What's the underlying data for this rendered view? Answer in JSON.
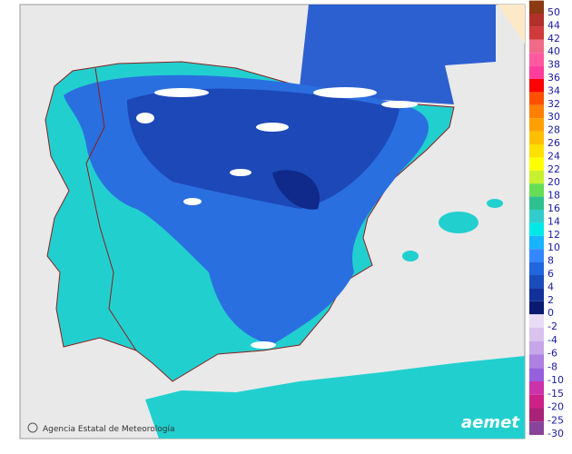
{
  "credit": "Agencia Estatal de Meteorología",
  "logo": "aemet",
  "legend": {
    "upper": [
      {
        "label": "50",
        "color": "#8c3a14"
      },
      {
        "label": "44",
        "color": "#b2302a"
      },
      {
        "label": "42",
        "color": "#d03a3a"
      },
      {
        "label": "40",
        "color": "#f06a8a"
      },
      {
        "label": "38",
        "color": "#ff5aa0"
      },
      {
        "label": "36",
        "color": "#ff3d9a"
      },
      {
        "label": "34",
        "color": "#ff0000"
      },
      {
        "label": "32",
        "color": "#ff5000"
      },
      {
        "label": "30",
        "color": "#ff8000"
      },
      {
        "label": "28",
        "color": "#ffa000"
      },
      {
        "label": "26",
        "color": "#ffc000"
      },
      {
        "label": "24",
        "color": "#ffe000"
      },
      {
        "label": "22",
        "color": "#ffff00"
      },
      {
        "label": "20",
        "color": "#c8f030"
      },
      {
        "label": "18",
        "color": "#66dd55"
      },
      {
        "label": "16",
        "color": "#30c090"
      },
      {
        "label": "14",
        "color": "#33cccc"
      },
      {
        "label": "12",
        "color": "#00e8e8"
      },
      {
        "label": "10",
        "color": "#18b4ff"
      },
      {
        "label": "8",
        "color": "#3388ff"
      },
      {
        "label": "6",
        "color": "#2266dd"
      },
      {
        "label": "4",
        "color": "#1a4cbb"
      },
      {
        "label": "2",
        "color": "#12309a"
      },
      {
        "label": "0",
        "color": "#0a1a70"
      }
    ],
    "lower": [
      {
        "label": "-2",
        "color": "#e8dcf4"
      },
      {
        "label": "-4",
        "color": "#d8c2ee"
      },
      {
        "label": "-6",
        "color": "#c6a6e8"
      },
      {
        "label": "-8",
        "color": "#ae80e0"
      },
      {
        "label": "-10",
        "color": "#9660dc"
      },
      {
        "label": "-15",
        "color": "#cc33aa"
      },
      {
        "label": "-20",
        "color": "#cc2288"
      },
      {
        "label": "-25",
        "color": "#aa2277"
      },
      {
        "label": "-30",
        "color": "#884499"
      }
    ]
  }
}
